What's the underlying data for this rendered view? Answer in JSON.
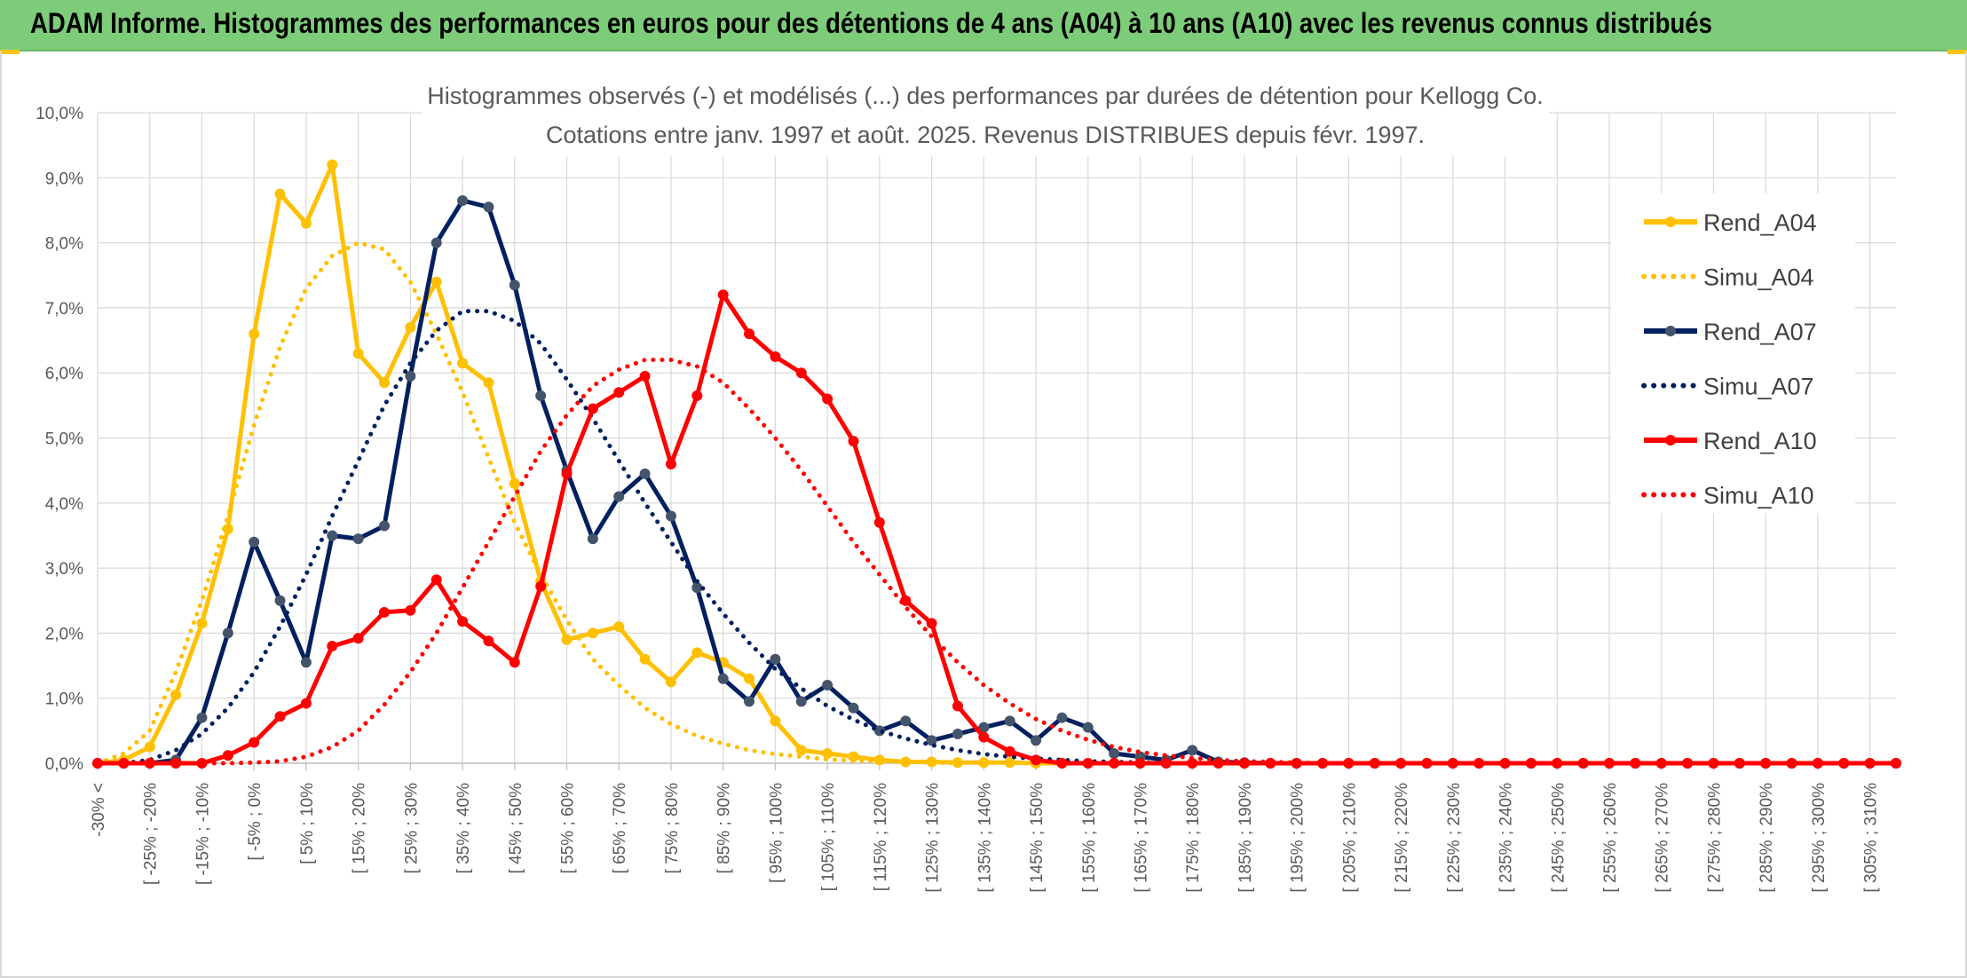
{
  "banner": {
    "title": "ADAM Informe. Histogrammes des performances en euros pour des détentions de 4 ans (A04) à 10 ans (A10) avec les revenus connus distribués"
  },
  "colors": {
    "banner_bg": "#7dcc79",
    "A04": "#ffc000",
    "A07": "#002060",
    "A10": "#ff0000",
    "grid": "#d9d9d9"
  },
  "chart_data": {
    "type": "line",
    "title_line1": "Histogrammes observés (-) et modélisés (...) des performances par durées de détention pour Kellogg Co.",
    "title_line2": "Cotations entre janv. 1997 et août. 2025. Revenus DISTRIBUES depuis févr. 1997.",
    "ylim": [
      0,
      10
    ],
    "yticks": [
      "0,0%",
      "1,0%",
      "2,0%",
      "3,0%",
      "4,0%",
      "5,0%",
      "6,0%",
      "7,0%",
      "8,0%",
      "9,0%",
      "10,0%"
    ],
    "grid": true,
    "legend_position": "right",
    "tick_labels": [
      "-30% <",
      "[ -25% ; -20%",
      "[ -15% ; -10%",
      "[ -5% ; 0%",
      "[ 5% ; 10%",
      "[ 15% ; 20%",
      "[ 25% ; 30%",
      "[ 35% ; 40%",
      "[ 45% ; 50%",
      "[ 55% ; 60%",
      "[ 65% ; 70%",
      "[ 75% ; 80%",
      "[ 85% ; 90%",
      "[ 95% ; 100%",
      "[ 105% ; 110%",
      "[ 115% ; 120%",
      "[ 125% ; 130%",
      "[ 135% ; 140%",
      "[ 145% ; 150%",
      "[ 155% ; 160%",
      "[ 165% ; 170%",
      "[ 175% ; 180%",
      "[ 185% ; 190%",
      "[ 195% ; 200%",
      "[ 205% ; 210%",
      "[ 215% ; 220%",
      "[ 225% ; 230%",
      "[ 235% ; 240%",
      "[ 245% ; 250%",
      "[ 255% ; 260%",
      "[ 265% ; 270%",
      "[ 275% ; 280%",
      "[ 285% ; 290%",
      "[ 295% ; 300%",
      "[ 305% ; 310%"
    ],
    "series": [
      {
        "name": "Rend_A04",
        "color": "#ffc000",
        "style": "solid",
        "markers": true,
        "values": [
          0,
          0.05,
          0.25,
          1.05,
          2.15,
          3.6,
          6.6,
          8.75,
          8.3,
          9.2,
          6.3,
          5.85,
          6.7,
          7.4,
          6.15,
          5.85,
          4.3,
          2.8,
          1.9,
          2.0,
          2.1,
          1.6,
          1.25,
          1.7,
          1.55,
          1.3,
          0.65,
          0.2,
          0.15,
          0.1,
          0.05,
          0.02,
          0.02,
          0.01,
          0.01,
          0.01,
          0,
          0,
          0,
          0,
          0,
          0,
          0,
          0,
          0,
          0,
          0,
          0,
          0,
          0,
          0,
          0,
          0,
          0,
          0,
          0,
          0,
          0,
          0,
          0,
          0,
          0,
          0,
          0,
          0,
          0,
          0,
          0,
          0,
          0
        ]
      },
      {
        "name": "Simu_A04",
        "color": "#ffc000",
        "style": "dotted",
        "markers": false,
        "values": [
          0,
          0.15,
          0.5,
          1.4,
          2.5,
          3.8,
          5.2,
          6.4,
          7.3,
          7.8,
          8.0,
          7.9,
          7.4,
          6.6,
          5.7,
          4.7,
          3.7,
          2.9,
          2.2,
          1.6,
          1.2,
          0.85,
          0.6,
          0.42,
          0.3,
          0.2,
          0.14,
          0.1,
          0.06,
          0.04,
          0.03,
          0.02,
          0.01,
          0,
          0,
          0,
          0,
          0,
          0,
          0,
          0,
          0,
          0,
          0,
          0,
          0,
          0,
          0,
          0,
          0,
          0,
          0,
          0,
          0,
          0,
          0,
          0,
          0,
          0,
          0,
          0,
          0,
          0,
          0,
          0,
          0,
          0,
          0,
          0,
          0
        ]
      },
      {
        "name": "Rend_A07",
        "color": "#002060",
        "style": "solid",
        "markers": true,
        "values": [
          0,
          0,
          0,
          0.05,
          0.7,
          2.0,
          3.4,
          2.5,
          1.55,
          3.5,
          3.45,
          3.65,
          5.95,
          8.0,
          8.65,
          8.55,
          7.35,
          5.65,
          4.5,
          3.45,
          4.1,
          4.45,
          3.8,
          2.7,
          1.3,
          0.95,
          1.6,
          0.95,
          1.2,
          0.85,
          0.5,
          0.65,
          0.35,
          0.45,
          0.55,
          0.65,
          0.35,
          0.7,
          0.55,
          0.15,
          0.1,
          0.05,
          0.2,
          0.02,
          0.01,
          0,
          0,
          0,
          0,
          0,
          0,
          0,
          0,
          0,
          0,
          0,
          0,
          0,
          0,
          0,
          0,
          0,
          0,
          0,
          0,
          0,
          0,
          0,
          0,
          0
        ]
      },
      {
        "name": "Simu_A07",
        "color": "#002060",
        "style": "dotted",
        "markers": false,
        "values": [
          0,
          0,
          0.05,
          0.2,
          0.45,
          0.85,
          1.4,
          2.1,
          2.9,
          3.8,
          4.65,
          5.5,
          6.15,
          6.65,
          6.95,
          6.95,
          6.8,
          6.45,
          5.9,
          5.3,
          4.65,
          4.0,
          3.4,
          2.8,
          2.3,
          1.85,
          1.45,
          1.15,
          0.88,
          0.67,
          0.5,
          0.38,
          0.28,
          0.2,
          0.14,
          0.1,
          0.07,
          0.05,
          0.03,
          0.02,
          0.01,
          0,
          0,
          0,
          0,
          0,
          0,
          0,
          0,
          0,
          0,
          0,
          0,
          0,
          0,
          0,
          0,
          0,
          0,
          0,
          0,
          0,
          0,
          0,
          0,
          0,
          0,
          0,
          0,
          0
        ]
      },
      {
        "name": "Rend_A10",
        "color": "#ff0000",
        "style": "solid",
        "markers": true,
        "values": [
          0,
          0,
          0,
          0,
          0,
          0.12,
          0.32,
          0.72,
          0.92,
          1.8,
          1.92,
          2.32,
          2.35,
          2.82,
          2.18,
          1.88,
          1.55,
          2.72,
          4.45,
          5.45,
          5.7,
          5.95,
          4.6,
          5.65,
          7.2,
          6.6,
          6.25,
          6.0,
          5.6,
          4.95,
          3.7,
          2.5,
          2.15,
          0.88,
          0.4,
          0.18,
          0.05,
          0,
          0,
          0,
          0,
          0,
          0,
          0,
          0,
          0,
          0,
          0,
          0,
          0,
          0,
          0,
          0,
          0,
          0,
          0,
          0,
          0,
          0,
          0,
          0,
          0,
          0,
          0,
          0,
          0,
          0,
          0,
          0,
          0
        ]
      },
      {
        "name": "Simu_A10",
        "color": "#ff0000",
        "style": "dotted",
        "markers": false,
        "values": [
          0,
          0,
          0,
          0,
          0,
          0,
          0.01,
          0.03,
          0.1,
          0.25,
          0.5,
          0.9,
          1.4,
          2.0,
          2.7,
          3.4,
          4.1,
          4.8,
          5.35,
          5.8,
          6.05,
          6.2,
          6.2,
          6.1,
          5.85,
          5.45,
          5.0,
          4.5,
          3.95,
          3.4,
          2.9,
          2.4,
          1.95,
          1.55,
          1.2,
          0.92,
          0.68,
          0.5,
          0.36,
          0.25,
          0.17,
          0.12,
          0.08,
          0.05,
          0.03,
          0.02,
          0.01,
          0,
          0,
          0,
          0,
          0,
          0,
          0,
          0,
          0,
          0,
          0,
          0,
          0,
          0,
          0,
          0,
          0,
          0,
          0,
          0,
          0,
          0,
          0
        ]
      }
    ]
  }
}
